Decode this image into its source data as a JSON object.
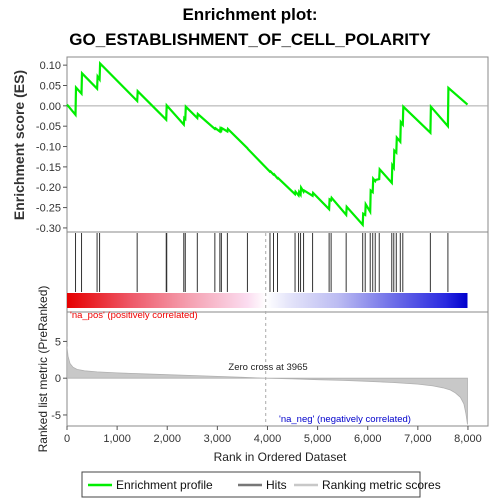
{
  "chart_data": {
    "type": "line",
    "title_line1": "Enrichment plot:",
    "title_line2": "GO_ESTABLISHMENT_OF_CELL_POLARITY",
    "top_panel": {
      "ylabel": "Enrichment score (ES)",
      "ylim": [
        -0.31,
        0.12
      ],
      "yticks": [
        0.1,
        0.05,
        0.0,
        -0.05,
        -0.1,
        -0.15,
        -0.2,
        -0.25,
        -0.3
      ],
      "ytick_labels": [
        "0.10",
        "0.05",
        "0.00",
        "-0.05",
        "-0.10",
        "-0.15",
        "-0.20",
        "-0.25",
        "-0.30"
      ],
      "series": [
        {
          "name": "Enrichment profile",
          "color": "#00ee00",
          "x": [
            0,
            170,
            180,
            290,
            300,
            600,
            610,
            650,
            660,
            1400,
            1410,
            1980,
            1990,
            2330,
            2340,
            2360,
            2370,
            2600,
            2610,
            2950,
            2960,
            3050,
            3060,
            3080,
            3090,
            3200,
            3210,
            3600,
            3610,
            4050,
            4060,
            4120,
            4130,
            4200,
            4210,
            4550,
            4560,
            4620,
            4630,
            4660,
            4670,
            4720,
            4730,
            4900,
            4910,
            5230,
            5240,
            5270,
            5280,
            5570,
            5580,
            5900,
            5910,
            5950,
            5960,
            6050,
            6060,
            6100,
            6110,
            6150,
            6160,
            6230,
            6240,
            6480,
            6490,
            6520,
            6530,
            6570,
            6580,
            6650,
            6660,
            6700,
            6710,
            7250,
            7260,
            7600,
            7610,
            7990
          ],
          "y": [
            0.003,
            -0.022,
            0.045,
            0.03,
            0.08,
            0.042,
            0.072,
            0.065,
            0.104,
            0.012,
            0.036,
            -0.034,
            0.001,
            -0.046,
            -0.03,
            -0.032,
            -0.002,
            -0.03,
            -0.02,
            -0.057,
            -0.055,
            -0.063,
            -0.056,
            -0.06,
            -0.055,
            -0.063,
            -0.057,
            -0.104,
            -0.106,
            -0.162,
            -0.161,
            -0.169,
            -0.168,
            -0.178,
            -0.177,
            -0.217,
            -0.211,
            -0.22,
            -0.212,
            -0.218,
            -0.201,
            -0.211,
            -0.208,
            -0.221,
            -0.214,
            -0.254,
            -0.23,
            -0.232,
            -0.226,
            -0.268,
            -0.248,
            -0.292,
            -0.265,
            -0.268,
            -0.242,
            -0.26,
            -0.208,
            -0.212,
            -0.179,
            -0.185,
            -0.182,
            -0.18,
            -0.156,
            -0.189,
            -0.146,
            -0.152,
            -0.11,
            -0.115,
            -0.078,
            -0.088,
            -0.04,
            -0.046,
            -0.002,
            -0.066,
            -0.002,
            -0.05,
            0.044,
            0.003
          ]
        }
      ]
    },
    "hits_panel": {
      "label": "Hits",
      "hit_x": [
        170,
        290,
        600,
        650,
        1400,
        1980,
        1990,
        2330,
        2360,
        2600,
        2950,
        3050,
        3080,
        3200,
        3600,
        4050,
        4120,
        4200,
        4550,
        4620,
        4660,
        4720,
        4900,
        5230,
        5270,
        5570,
        5900,
        5950,
        6050,
        6100,
        6150,
        6230,
        6480,
        6520,
        6570,
        6650,
        6700,
        7250,
        7600
      ],
      "heatmap_stops": [
        {
          "x": 0,
          "color": "#e60000"
        },
        {
          "x": 1300,
          "color": "#ee5a6a"
        },
        {
          "x": 2500,
          "color": "#f5a4b4"
        },
        {
          "x": 3600,
          "color": "#fbdcf0"
        },
        {
          "x": 3965,
          "color": "#ffffff"
        },
        {
          "x": 4400,
          "color": "#e6e6fa"
        },
        {
          "x": 5400,
          "color": "#bcbcf2"
        },
        {
          "x": 6500,
          "color": "#6e6ee8"
        },
        {
          "x": 7550,
          "color": "#2a2ae0"
        },
        {
          "x": 7990,
          "color": "#0000cc"
        }
      ]
    },
    "bottom_panel": {
      "ylabel": "Ranked list metric (PreRanked)",
      "xlabel": "Rank in Ordered Dataset",
      "ylim": [
        -6.5,
        9.0
      ],
      "yticks": [
        5,
        0,
        -5
      ],
      "ytick_labels": [
        "5",
        "0",
        "-5"
      ],
      "xlim": [
        0,
        8400
      ],
      "xticks": [
        0,
        1000,
        2000,
        3000,
        4000,
        5000,
        6000,
        7000,
        8000
      ],
      "xtick_labels": [
        "0",
        "1,000",
        "2,000",
        "3,000",
        "4,000",
        "5,000",
        "6,000",
        "7,000",
        "8,000"
      ],
      "series": [
        {
          "name": "Ranking metric scores",
          "color": "#c0c0c0",
          "x": [
            0,
            20,
            60,
            120,
            200,
            350,
            600,
            1000,
            1500,
            2000,
            2500,
            3000,
            3500,
            3965,
            4500,
            5000,
            5500,
            6000,
            6500,
            7000,
            7300,
            7500,
            7650,
            7750,
            7850,
            7920,
            7960,
            7990
          ],
          "y": [
            4.3,
            3.0,
            2.0,
            1.5,
            1.2,
            1.0,
            0.85,
            0.72,
            0.6,
            0.48,
            0.36,
            0.25,
            0.12,
            0.0,
            -0.1,
            -0.2,
            -0.3,
            -0.42,
            -0.58,
            -0.8,
            -1.05,
            -1.3,
            -1.6,
            -2.0,
            -2.6,
            -3.5,
            -4.8,
            -6.3
          ]
        }
      ],
      "zero_cross_label": "Zero cross at 3965",
      "zero_cross_x": 3965,
      "pos_label": "'na_pos' (positively correlated)",
      "neg_label": "'na_neg' (negatively correlated)",
      "pos_color": "#ee0000",
      "neg_color": "#0000cc"
    },
    "legend": {
      "placement": "bottom",
      "items": [
        {
          "label": "Enrichment profile",
          "color": "#00ee00"
        },
        {
          "label": "Hits",
          "color": "#777777"
        },
        {
          "label": "Ranking metric scores",
          "color": "#c8c8c8"
        }
      ]
    }
  }
}
